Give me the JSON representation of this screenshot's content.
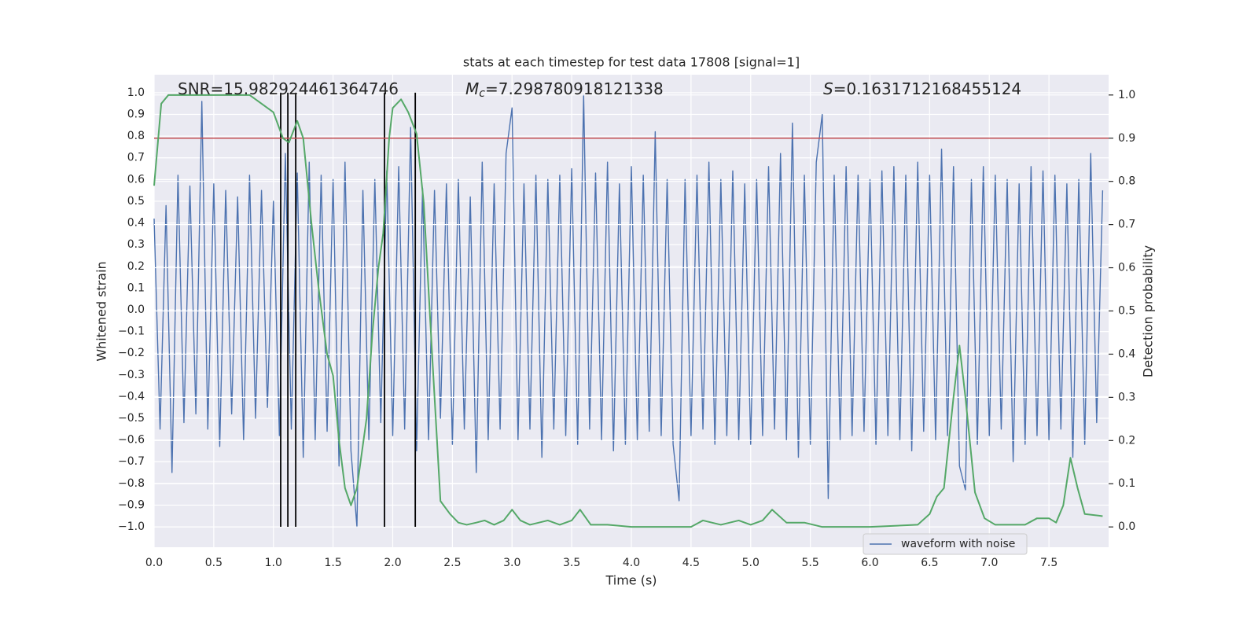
{
  "chart_data": {
    "type": "line",
    "title": "stats at each timestep for test data 17808 [signal=1]",
    "x_label": "Time (s)",
    "y_label": "Whitened strain",
    "y2_label": "Detection probability",
    "grid": true,
    "legend": "lower right",
    "xlim": [
      0,
      8
    ],
    "ylim": [
      -1.094,
      1.083
    ],
    "y2lim": [
      -0.047,
      1.047
    ],
    "xticks": [
      {
        "value": 0,
        "label": "0.0"
      },
      0.5,
      {
        "value": 1,
        "label": "1.0"
      },
      1.5,
      {
        "value": 2,
        "label": "2.0"
      },
      2.5,
      {
        "value": 3,
        "label": "3.0"
      },
      3.5,
      {
        "value": 4,
        "label": "4.0"
      },
      4.5,
      {
        "value": 5,
        "label": "5.0"
      },
      5.5,
      {
        "value": 6,
        "label": "6.0"
      },
      6.5,
      {
        "value": 7,
        "label": "7.0"
      },
      7.5
    ],
    "yticks": [
      {
        "value": -1,
        "label": "−1.0"
      },
      {
        "value": -0.9,
        "label": "−0.9"
      },
      {
        "value": -0.8,
        "label": "−0.8"
      },
      {
        "value": -0.7,
        "label": "−0.7"
      },
      {
        "value": -0.6,
        "label": "−0.6"
      },
      {
        "value": -0.5,
        "label": "−0.5"
      },
      {
        "value": -0.4,
        "label": "−0.4"
      },
      {
        "value": -0.3,
        "label": "−0.3"
      },
      {
        "value": -0.2,
        "label": "−0.2"
      },
      {
        "value": -0.1,
        "label": "−0.1"
      },
      {
        "value": 0,
        "label": "0.0"
      },
      0.1,
      0.2,
      0.3,
      0.4,
      0.5,
      0.6,
      0.7,
      0.8,
      0.9,
      {
        "value": 1,
        "label": "1.0"
      }
    ],
    "y2ticks": [
      {
        "value": 0,
        "label": "0.0"
      },
      0.1,
      0.2,
      0.3,
      0.4,
      0.5,
      0.6,
      0.7,
      0.8,
      0.9,
      {
        "value": 1,
        "label": "1.0"
      }
    ],
    "annotations": [
      {
        "parts": [
          {
            "text": "SNR=15.982924461364746",
            "style": "normal"
          }
        ]
      },
      {
        "parts": [
          {
            "text": "M",
            "style": "italic"
          },
          {
            "text": "c",
            "style": "italic-sub"
          },
          {
            "text": "=7.298780918121338",
            "style": "normal"
          }
        ]
      },
      {
        "parts": [
          {
            "text": "S",
            "style": "italic"
          },
          {
            "text": "=0.1631712168455124",
            "style": "normal"
          }
        ]
      }
    ],
    "hline": {
      "y": 0.9,
      "axis": "y2",
      "color": "#c44e52"
    },
    "vlines": {
      "x": [
        1.061,
        1.121,
        1.187,
        1.931,
        2.189
      ],
      "ymin": -1,
      "ymax": 1,
      "color": "#000000"
    },
    "series": [
      {
        "name": "waveform with noise",
        "color": "#4c72b0",
        "x": [
          0.0,
          0.05,
          0.1,
          0.15,
          0.2,
          0.25,
          0.3,
          0.35,
          0.4,
          0.45,
          0.5,
          0.55,
          0.6,
          0.65,
          0.7,
          0.75,
          0.8,
          0.85,
          0.9,
          0.95,
          1.0,
          1.05,
          1.1,
          1.15,
          1.2,
          1.25,
          1.3,
          1.35,
          1.4,
          1.45,
          1.5,
          1.55,
          1.6,
          1.65,
          1.7,
          1.75,
          1.8,
          1.85,
          1.9,
          1.95,
          2.0,
          2.05,
          2.1,
          2.15,
          2.2,
          2.25,
          2.3,
          2.35,
          2.4,
          2.45,
          2.5,
          2.55,
          2.6,
          2.65,
          2.7,
          2.75,
          2.8,
          2.85,
          2.9,
          2.95,
          3.0,
          3.05,
          3.1,
          3.15,
          3.2,
          3.25,
          3.3,
          3.35,
          3.4,
          3.45,
          3.5,
          3.55,
          3.6,
          3.65,
          3.7,
          3.75,
          3.8,
          3.85,
          3.9,
          3.95,
          4.0,
          4.05,
          4.1,
          4.15,
          4.2,
          4.25,
          4.3,
          4.35,
          4.4,
          4.45,
          4.5,
          4.55,
          4.6,
          4.65,
          4.7,
          4.75,
          4.8,
          4.85,
          4.9,
          4.95,
          5.0,
          5.05,
          5.1,
          5.15,
          5.2,
          5.25,
          5.3,
          5.35,
          5.4,
          5.45,
          5.5,
          5.55,
          5.6,
          5.65,
          5.7,
          5.75,
          5.8,
          5.85,
          5.9,
          5.95,
          6.0,
          6.05,
          6.1,
          6.15,
          6.2,
          6.25,
          6.3,
          6.35,
          6.4,
          6.45,
          6.5,
          6.55,
          6.6,
          6.65,
          6.7,
          6.75,
          6.8,
          6.85,
          6.9,
          6.95,
          7.0,
          7.05,
          7.1,
          7.15,
          7.2,
          7.25,
          7.3,
          7.35,
          7.4,
          7.45,
          7.5,
          7.55,
          7.6,
          7.65,
          7.7,
          7.75,
          7.8,
          7.85,
          7.9,
          7.95
        ],
        "values": [
          0.42,
          -0.55,
          0.48,
          -0.75,
          0.62,
          -0.52,
          0.57,
          -0.48,
          0.96,
          -0.55,
          0.58,
          -0.63,
          0.55,
          -0.48,
          0.52,
          -0.6,
          0.62,
          -0.5,
          0.55,
          -0.45,
          0.5,
          -0.58,
          0.72,
          -0.55,
          0.63,
          -0.68,
          0.68,
          -0.6,
          0.62,
          -0.56,
          0.6,
          -0.72,
          0.68,
          -0.65,
          -1.0,
          0.55,
          -0.6,
          0.6,
          -0.52,
          0.64,
          -0.58,
          0.66,
          -0.55,
          0.84,
          -0.65,
          0.56,
          -0.6,
          0.55,
          -0.5,
          0.58,
          -0.62,
          0.6,
          -0.55,
          0.52,
          -0.75,
          0.68,
          -0.6,
          0.58,
          -0.55,
          0.72,
          0.93,
          -0.6,
          0.58,
          -0.55,
          0.62,
          -0.68,
          0.6,
          -0.55,
          0.62,
          -0.58,
          0.65,
          -0.62,
          0.99,
          -0.55,
          0.63,
          -0.6,
          0.68,
          -0.65,
          0.58,
          -0.62,
          0.66,
          -0.6,
          0.62,
          -0.56,
          0.82,
          -0.58,
          0.6,
          -0.62,
          -0.88,
          0.6,
          -0.58,
          0.62,
          -0.55,
          0.68,
          -0.62,
          0.6,
          -0.58,
          0.64,
          -0.6,
          0.58,
          -0.62,
          0.6,
          -0.58,
          0.66,
          -0.55,
          0.72,
          -0.6,
          0.86,
          -0.68,
          0.62,
          -0.62,
          0.68,
          0.9,
          -0.87,
          0.62,
          -0.6,
          0.66,
          -0.58,
          0.62,
          -0.56,
          0.6,
          -0.62,
          0.64,
          -0.58,
          0.66,
          -0.6,
          0.62,
          -0.65,
          0.68,
          -0.56,
          0.62,
          -0.6,
          0.74,
          -0.58,
          0.66,
          -0.72,
          -0.83,
          0.6,
          -0.62,
          0.66,
          -0.58,
          0.62,
          -0.55,
          0.6,
          -0.7,
          0.58,
          -0.62,
          0.66,
          -0.58,
          0.64,
          -0.6,
          0.62,
          -0.55,
          0.58,
          -0.68,
          0.6,
          -0.62,
          0.72,
          -0.52,
          0.55
        ]
      },
      {
        "color": "#55a868",
        "axis": "y2",
        "x": [
          0,
          0.06,
          0.12,
          0.8,
          0.9,
          1.0,
          1.08,
          1.13,
          1.2,
          1.25,
          1.32,
          1.38,
          1.45,
          1.5,
          1.55,
          1.6,
          1.65,
          1.7,
          1.78,
          1.83,
          1.88,
          1.92,
          1.97,
          2.0,
          2.07,
          2.13,
          2.2,
          2.26,
          2.33,
          2.4,
          2.48,
          2.55,
          2.62,
          2.7,
          2.77,
          2.85,
          2.93,
          3.0,
          3.07,
          3.15,
          3.3,
          3.4,
          3.5,
          3.57,
          3.66,
          3.8,
          4.0,
          4.5,
          4.6,
          4.75,
          4.9,
          5.0,
          5.1,
          5.18,
          5.3,
          5.45,
          5.6,
          6.0,
          6.4,
          6.5,
          6.56,
          6.62,
          6.7,
          6.75,
          6.8,
          6.88,
          6.96,
          7.05,
          7.3,
          7.4,
          7.5,
          7.56,
          7.62,
          7.68,
          7.74,
          7.8,
          7.95
        ],
        "values": [
          0.79,
          0.98,
          1.0,
          1.0,
          0.98,
          0.96,
          0.9,
          0.89,
          0.94,
          0.9,
          0.7,
          0.55,
          0.4,
          0.35,
          0.2,
          0.09,
          0.05,
          0.09,
          0.25,
          0.45,
          0.6,
          0.68,
          0.9,
          0.97,
          0.99,
          0.96,
          0.91,
          0.75,
          0.4,
          0.06,
          0.03,
          0.01,
          0.005,
          0.01,
          0.015,
          0.005,
          0.015,
          0.04,
          0.015,
          0.005,
          0.015,
          0.005,
          0.015,
          0.04,
          0.005,
          0.005,
          0.0,
          0.0,
          0.015,
          0.005,
          0.015,
          0.005,
          0.015,
          0.04,
          0.01,
          0.01,
          0.0,
          0.0,
          0.005,
          0.03,
          0.07,
          0.09,
          0.3,
          0.42,
          0.3,
          0.08,
          0.02,
          0.005,
          0.005,
          0.02,
          0.02,
          0.01,
          0.05,
          0.16,
          0.09,
          0.03,
          0.025
        ]
      }
    ]
  }
}
